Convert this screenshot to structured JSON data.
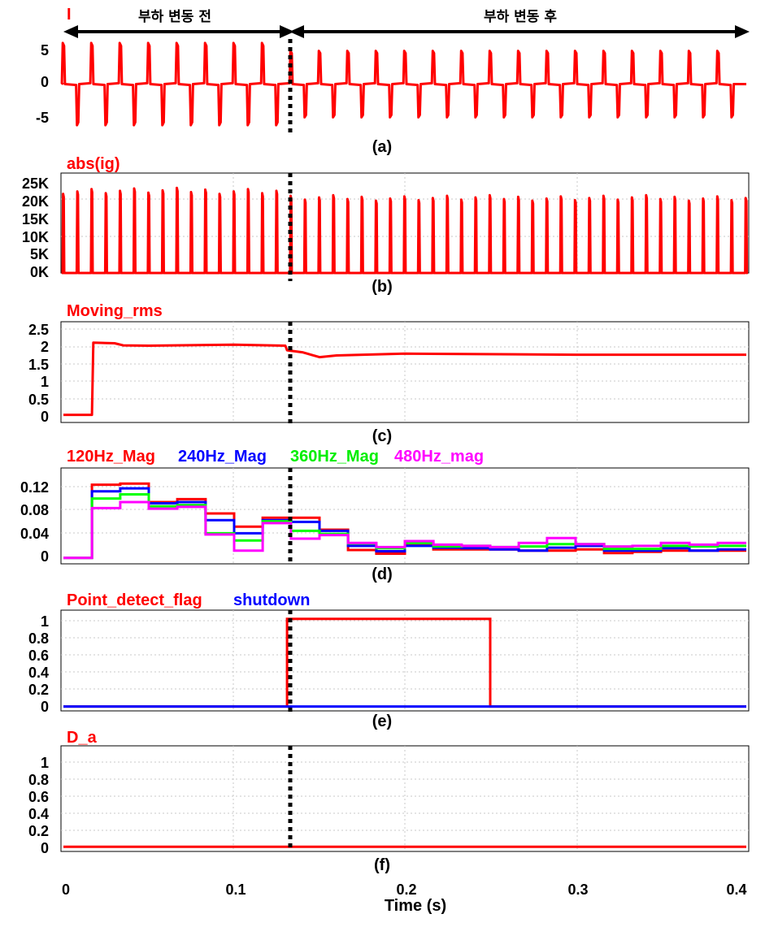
{
  "chart_data": [
    {
      "type": "line",
      "panel": "a",
      "caption": "(a)",
      "ylim": [
        -8,
        8
      ],
      "yticks": [
        "5",
        "0",
        "-5"
      ],
      "grid": true,
      "series": [
        {
          "name": "I",
          "color": "#ff0000",
          "peak_before": 6.8,
          "peak_after": 5.5,
          "period_s": 0.01667
        }
      ],
      "annotations": {
        "before": "부하 변동 전",
        "after": "부하 변동 후",
        "event_time": 0.131
      }
    },
    {
      "type": "line",
      "panel": "b",
      "caption": "(b)",
      "ylim": [
        0,
        27000
      ],
      "yticks": [
        "25K",
        "20K",
        "15K",
        "10K",
        "5K",
        "0K"
      ],
      "grid": true,
      "series": [
        {
          "name": "abs(ig)",
          "color": "#ff0000",
          "peak_before": 23000,
          "peak_after": 21000,
          "period_s": 0.00833
        }
      ]
    },
    {
      "type": "line",
      "panel": "c",
      "caption": "(c)",
      "ylim": [
        -0.2,
        2.7
      ],
      "yticks": [
        "2.5",
        "2",
        "1.5",
        "1",
        "0.5",
        "0"
      ],
      "grid": true,
      "series": [
        {
          "name": "Moving_rms",
          "color": "#ff0000",
          "x": [
            0,
            0.0167,
            0.0175,
            0.03,
            0.035,
            0.05,
            0.1,
            0.13,
            0.131,
            0.14,
            0.15,
            0.16,
            0.2,
            0.3,
            0.4
          ],
          "y": [
            0.02,
            0.02,
            2.1,
            2.08,
            2.02,
            2.01,
            2.04,
            2.01,
            1.88,
            1.82,
            1.68,
            1.73,
            1.78,
            1.75,
            1.75
          ]
        }
      ]
    },
    {
      "type": "line",
      "panel": "d",
      "caption": "(d)",
      "ylim": [
        -0.01,
        0.15
      ],
      "yticks": [
        "0.12",
        "0.08",
        "0.04",
        "0"
      ],
      "grid": true,
      "x": [
        0,
        0.0167,
        0.0333,
        0.05,
        0.0667,
        0.0833,
        0.1,
        0.1167,
        0.1333,
        0.15,
        0.1667,
        0.1833,
        0.2,
        0.2167,
        0.2333,
        0.25,
        0.2667,
        0.2833,
        0.3,
        0.3167,
        0.3333,
        0.35,
        0.3667,
        0.3833,
        0.4
      ],
      "series": [
        {
          "name": "120Hz_Mag",
          "color": "#ff0000",
          "values": [
            0,
            0.122,
            0.124,
            0.093,
            0.098,
            0.074,
            0.052,
            0.067,
            0.067,
            0.047,
            0.013,
            0.007,
            0.021,
            0.014,
            0.014,
            0.014,
            0.012,
            0.012,
            0.014,
            0.008,
            0.01,
            0.012,
            0.012,
            0.012,
            0.008
          ]
        },
        {
          "name": "240Hz_Mag",
          "color": "#0000ff",
          "values": [
            0,
            0.111,
            0.116,
            0.091,
            0.093,
            0.063,
            0.041,
            0.063,
            0.06,
            0.045,
            0.02,
            0.011,
            0.02,
            0.017,
            0.016,
            0.014,
            0.012,
            0.017,
            0.02,
            0.012,
            0.012,
            0.016,
            0.012,
            0.014,
            0.011
          ]
        },
        {
          "name": "360Hz_Mag",
          "color": "#00ff00",
          "values": [
            0,
            0.099,
            0.106,
            0.086,
            0.088,
            0.041,
            0.029,
            0.061,
            0.045,
            0.04,
            0.024,
            0.016,
            0.025,
            0.019,
            0.02,
            0.018,
            0.019,
            0.023,
            0.023,
            0.015,
            0.015,
            0.02,
            0.019,
            0.02,
            0.019
          ]
        },
        {
          "name": "480Hz_mag",
          "color": "#ff00ff",
          "values": [
            0,
            0.083,
            0.093,
            0.082,
            0.085,
            0.039,
            0.012,
            0.058,
            0.032,
            0.038,
            0.025,
            0.018,
            0.028,
            0.022,
            0.02,
            0.018,
            0.025,
            0.033,
            0.023,
            0.019,
            0.02,
            0.025,
            0.022,
            0.025,
            0.025
          ]
        }
      ]
    },
    {
      "type": "line",
      "panel": "e",
      "caption": "(e)",
      "ylim": [
        -0.05,
        1.1
      ],
      "yticks": [
        "1",
        "0.8",
        "0.6",
        "0.4",
        "0.2",
        "0"
      ],
      "grid": true,
      "series": [
        {
          "name": "Point_detect_flag",
          "color": "#ff0000",
          "x": [
            0,
            0.131,
            0.131,
            0.25,
            0.25,
            0.4
          ],
          "y": [
            0,
            0,
            1,
            1,
            0,
            0
          ]
        },
        {
          "name": "shutdown",
          "color": "#0000ff",
          "x": [
            0,
            0.4
          ],
          "y": [
            0,
            0
          ]
        }
      ]
    },
    {
      "type": "line",
      "panel": "f",
      "caption": "(f)",
      "ylim": [
        -0.05,
        1.1
      ],
      "yticks": [
        "1",
        "0.8",
        "0.6",
        "0.4",
        "0.2",
        "0"
      ],
      "grid": true,
      "series": [
        {
          "name": "D_a",
          "color": "#ff0000",
          "x": [
            0,
            0.4
          ],
          "y": [
            0,
            0
          ]
        }
      ]
    }
  ],
  "x_axis": {
    "label": "Time (s)",
    "ticks": [
      "0",
      "0.1",
      "0.2",
      "0.3",
      "0.4"
    ],
    "tick_values": [
      0,
      0.1,
      0.2,
      0.3,
      0.4
    ],
    "xlim": [
      0,
      0.4
    ]
  },
  "event_time": 0.131
}
